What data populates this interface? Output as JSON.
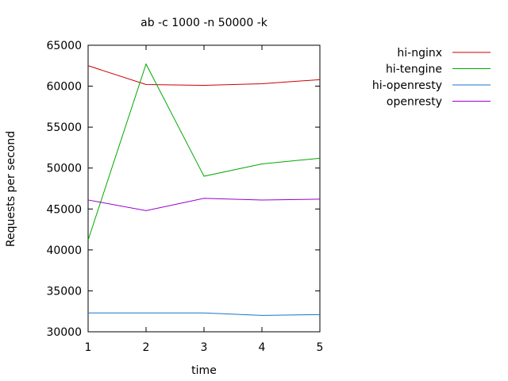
{
  "chart_data": {
    "type": "line",
    "title": "ab -c 1000 -n 50000 -k",
    "xlabel": "time",
    "ylabel": "Requests per second",
    "x": [
      1,
      2,
      3,
      4,
      5
    ],
    "xlim": [
      1,
      5
    ],
    "ylim": [
      30000,
      65000
    ],
    "xticks": [
      1,
      2,
      3,
      4,
      5
    ],
    "yticks": [
      30000,
      35000,
      40000,
      45000,
      50000,
      55000,
      60000,
      65000
    ],
    "grid": false,
    "legend_position": "outside-right-top",
    "series": [
      {
        "name": "hi-nginx",
        "color": "#cc0000",
        "values": [
          62500,
          60200,
          60100,
          60300,
          60800
        ]
      },
      {
        "name": "hi-tengine",
        "color": "#00aa00",
        "values": [
          41200,
          62700,
          49000,
          50500,
          51200
        ]
      },
      {
        "name": "hi-openresty",
        "color": "#1874cd",
        "values": [
          32300,
          32300,
          32300,
          32000,
          32100
        ]
      },
      {
        "name": "openresty",
        "color": "#9900cc",
        "values": [
          46100,
          44800,
          46300,
          46100,
          46200
        ]
      }
    ]
  }
}
